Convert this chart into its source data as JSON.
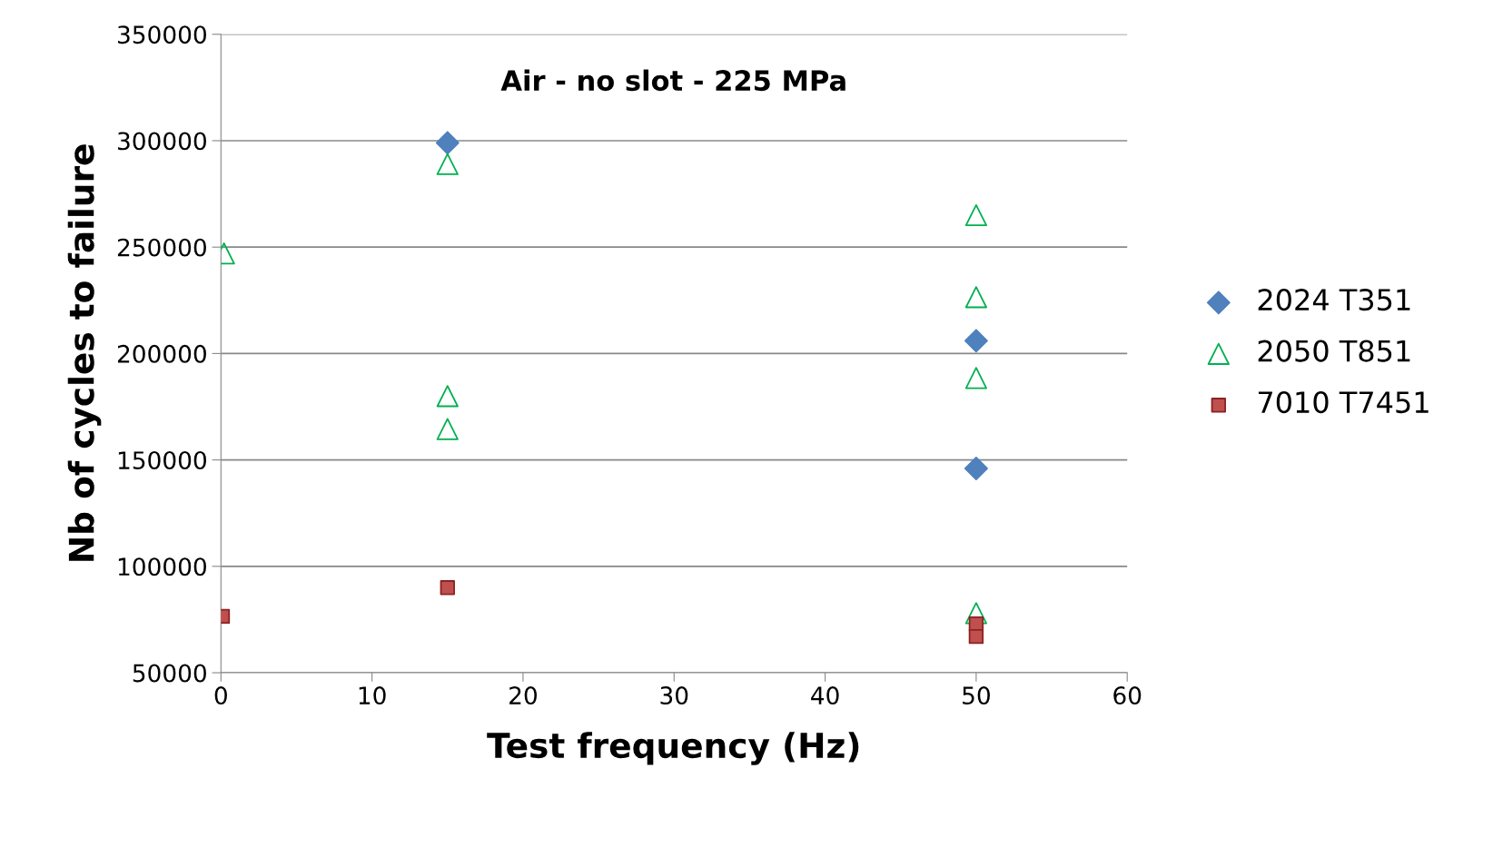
{
  "chart_data": {
    "type": "scatter",
    "title": "Air - no slot - 225 MPa",
    "xlabel": "Test frequency (Hz)",
    "ylabel": "Nb of cycles to failure",
    "xlim": [
      0,
      60
    ],
    "xticks": [
      0,
      10,
      20,
      30,
      40,
      50,
      60
    ],
    "ylim": [
      50000,
      350000
    ],
    "yticks": [
      50000,
      100000,
      150000,
      200000,
      250000,
      300000,
      350000
    ],
    "grid": "y",
    "legend": "right",
    "series": [
      {
        "name": "2024 T351",
        "color": "#4f81bd",
        "marker": "diamond",
        "x": [
          15,
          50,
          50
        ],
        "values": [
          299000,
          206000,
          146000
        ]
      },
      {
        "name": "2050 T851",
        "color": "#00b050",
        "marker": "triangle",
        "x": [
          0.2,
          15,
          15,
          15,
          50,
          50,
          50,
          50
        ],
        "values": [
          247000,
          289000,
          180000,
          164500,
          265000,
          226500,
          188500,
          78000
        ]
      },
      {
        "name": "7010 T7451",
        "color": "#c0504d",
        "marker": "square",
        "x": [
          0.1,
          15,
          50,
          50
        ],
        "values": [
          76500,
          90000,
          73000,
          67000
        ]
      }
    ]
  }
}
